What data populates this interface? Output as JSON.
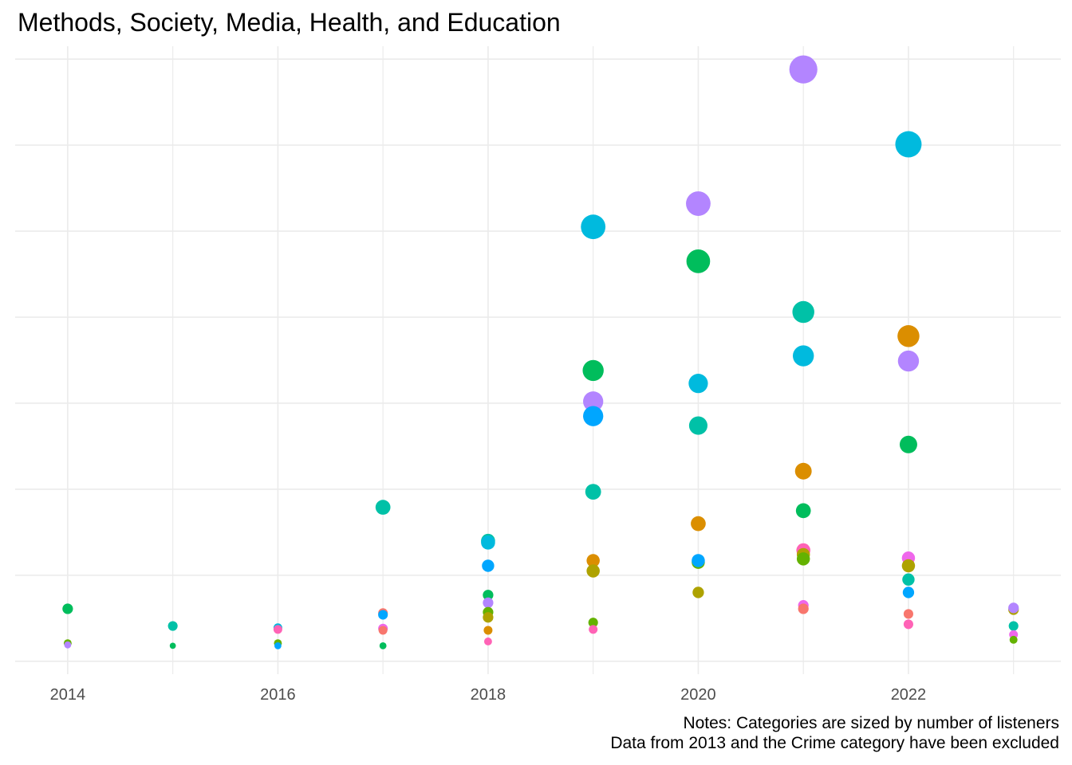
{
  "chart_data": {
    "type": "scatter",
    "title": "Methods, Society, Media, Health, and Education",
    "xlabel": "",
    "ylabel": "",
    "xlim": [
      2013.5,
      2023.45
    ],
    "ylim": [
      -0.15,
      7.15
    ],
    "x_ticks": [
      2014,
      2016,
      2018,
      2020,
      2022
    ],
    "x_tick_labels": [
      "2014",
      "2016",
      "2018",
      "2020",
      "2022"
    ],
    "y_ticks": [
      0,
      1,
      2,
      3,
      4,
      5,
      6,
      7
    ],
    "y_tick_labels_shown": false,
    "grid": true,
    "legend": "none",
    "size_encoding": "number of listeners",
    "notes": [
      "Notes: Categories are sized by number of listeners",
      "Data from 2013 and the Crime category have been excluded"
    ],
    "color_palette": [
      "#F8766D",
      "#DB8E00",
      "#AEA200",
      "#64B200",
      "#00BD5C",
      "#00C1A7",
      "#00BADE",
      "#00A6FF",
      "#B385FF",
      "#EF67EB",
      "#FF63B6"
    ],
    "points": [
      {
        "x": 2014,
        "y": 0.61,
        "size": 1.2,
        "color": "#00BD5C"
      },
      {
        "x": 2014,
        "y": 0.21,
        "size": 0.9,
        "color": "#64B200"
      },
      {
        "x": 2014,
        "y": 0.19,
        "size": 0.8,
        "color": "#B385FF"
      },
      {
        "x": 2015,
        "y": 0.41,
        "size": 1.1,
        "color": "#00C1A7"
      },
      {
        "x": 2015,
        "y": 0.18,
        "size": 0.7,
        "color": "#00BD5C"
      },
      {
        "x": 2016,
        "y": 0.39,
        "size": 1.0,
        "color": "#00BADE"
      },
      {
        "x": 2016,
        "y": 0.37,
        "size": 1.0,
        "color": "#FF63B6"
      },
      {
        "x": 2016,
        "y": 0.21,
        "size": 0.9,
        "color": "#64B200"
      },
      {
        "x": 2016,
        "y": 0.18,
        "size": 0.8,
        "color": "#00A6FF"
      },
      {
        "x": 2017,
        "y": 1.79,
        "size": 1.7,
        "color": "#00C1A7"
      },
      {
        "x": 2017,
        "y": 0.56,
        "size": 1.1,
        "color": "#F8766D"
      },
      {
        "x": 2017,
        "y": 0.54,
        "size": 1.1,
        "color": "#00A6FF"
      },
      {
        "x": 2017,
        "y": 0.38,
        "size": 1.1,
        "color": "#EF67EB"
      },
      {
        "x": 2017,
        "y": 0.36,
        "size": 1.0,
        "color": "#F8766D"
      },
      {
        "x": 2017,
        "y": 0.18,
        "size": 0.8,
        "color": "#00BD5C"
      },
      {
        "x": 2018,
        "y": 1.4,
        "size": 1.6,
        "color": "#00C1A7"
      },
      {
        "x": 2018,
        "y": 1.38,
        "size": 1.6,
        "color": "#00BADE"
      },
      {
        "x": 2018,
        "y": 1.11,
        "size": 1.4,
        "color": "#00A6FF"
      },
      {
        "x": 2018,
        "y": 0.77,
        "size": 1.2,
        "color": "#00BD5C"
      },
      {
        "x": 2018,
        "y": 0.68,
        "size": 1.2,
        "color": "#B385FF"
      },
      {
        "x": 2018,
        "y": 0.57,
        "size": 1.2,
        "color": "#64B200"
      },
      {
        "x": 2018,
        "y": 0.51,
        "size": 1.2,
        "color": "#AEA200"
      },
      {
        "x": 2018,
        "y": 0.36,
        "size": 1.0,
        "color": "#DB8E00"
      },
      {
        "x": 2018,
        "y": 0.23,
        "size": 0.9,
        "color": "#FF63B6"
      },
      {
        "x": 2019,
        "y": 5.05,
        "size": 2.8,
        "color": "#00BADE"
      },
      {
        "x": 2019,
        "y": 3.38,
        "size": 2.4,
        "color": "#00BD5C"
      },
      {
        "x": 2019,
        "y": 3.02,
        "size": 2.3,
        "color": "#B385FF"
      },
      {
        "x": 2019,
        "y": 2.85,
        "size": 2.3,
        "color": "#00A6FF"
      },
      {
        "x": 2019,
        "y": 1.97,
        "size": 1.8,
        "color": "#00C1A7"
      },
      {
        "x": 2019,
        "y": 1.17,
        "size": 1.5,
        "color": "#DB8E00"
      },
      {
        "x": 2019,
        "y": 1.05,
        "size": 1.5,
        "color": "#AEA200"
      },
      {
        "x": 2019,
        "y": 0.45,
        "size": 1.1,
        "color": "#64B200"
      },
      {
        "x": 2019,
        "y": 0.37,
        "size": 1.0,
        "color": "#FF63B6"
      },
      {
        "x": 2020,
        "y": 5.32,
        "size": 2.8,
        "color": "#B385FF"
      },
      {
        "x": 2020,
        "y": 4.65,
        "size": 2.7,
        "color": "#00BD5C"
      },
      {
        "x": 2020,
        "y": 3.23,
        "size": 2.2,
        "color": "#00BADE"
      },
      {
        "x": 2020,
        "y": 2.74,
        "size": 2.1,
        "color": "#00C1A7"
      },
      {
        "x": 2020,
        "y": 1.6,
        "size": 1.7,
        "color": "#DB8E00"
      },
      {
        "x": 2020,
        "y": 1.15,
        "size": 1.5,
        "color": "#64B200"
      },
      {
        "x": 2020,
        "y": 1.17,
        "size": 1.5,
        "color": "#00A6FF"
      },
      {
        "x": 2020,
        "y": 0.8,
        "size": 1.3,
        "color": "#AEA200"
      },
      {
        "x": 2021,
        "y": 6.88,
        "size": 3.2,
        "color": "#B385FF"
      },
      {
        "x": 2021,
        "y": 4.06,
        "size": 2.5,
        "color": "#00C1A7"
      },
      {
        "x": 2021,
        "y": 3.55,
        "size": 2.4,
        "color": "#00BADE"
      },
      {
        "x": 2021,
        "y": 2.21,
        "size": 1.9,
        "color": "#DB8E00"
      },
      {
        "x": 2021,
        "y": 1.75,
        "size": 1.7,
        "color": "#00BD5C"
      },
      {
        "x": 2021,
        "y": 1.29,
        "size": 1.6,
        "color": "#FF63B6"
      },
      {
        "x": 2021,
        "y": 1.24,
        "size": 1.5,
        "color": "#AEA200"
      },
      {
        "x": 2021,
        "y": 1.19,
        "size": 1.5,
        "color": "#64B200"
      },
      {
        "x": 2021,
        "y": 0.65,
        "size": 1.2,
        "color": "#EF67EB"
      },
      {
        "x": 2021,
        "y": 0.61,
        "size": 1.2,
        "color": "#F8766D"
      },
      {
        "x": 2022,
        "y": 6.01,
        "size": 3.0,
        "color": "#00BADE"
      },
      {
        "x": 2022,
        "y": 3.78,
        "size": 2.5,
        "color": "#DB8E00"
      },
      {
        "x": 2022,
        "y": 3.49,
        "size": 2.4,
        "color": "#B385FF"
      },
      {
        "x": 2022,
        "y": 2.52,
        "size": 2.0,
        "color": "#00BD5C"
      },
      {
        "x": 2022,
        "y": 1.2,
        "size": 1.5,
        "color": "#EF67EB"
      },
      {
        "x": 2022,
        "y": 1.11,
        "size": 1.5,
        "color": "#AEA200"
      },
      {
        "x": 2022,
        "y": 0.95,
        "size": 1.4,
        "color": "#00C1A7"
      },
      {
        "x": 2022,
        "y": 0.8,
        "size": 1.3,
        "color": "#00A6FF"
      },
      {
        "x": 2022,
        "y": 0.55,
        "size": 1.1,
        "color": "#F8766D"
      },
      {
        "x": 2022,
        "y": 0.43,
        "size": 1.1,
        "color": "#FF63B6"
      },
      {
        "x": 2023,
        "y": 0.6,
        "size": 1.2,
        "color": "#AEA200"
      },
      {
        "x": 2023,
        "y": 0.62,
        "size": 1.2,
        "color": "#B385FF"
      },
      {
        "x": 2023,
        "y": 0.41,
        "size": 1.1,
        "color": "#00C1A7"
      },
      {
        "x": 2023,
        "y": 0.31,
        "size": 1.0,
        "color": "#EF67EB"
      },
      {
        "x": 2023,
        "y": 0.25,
        "size": 0.9,
        "color": "#64B200"
      }
    ]
  }
}
